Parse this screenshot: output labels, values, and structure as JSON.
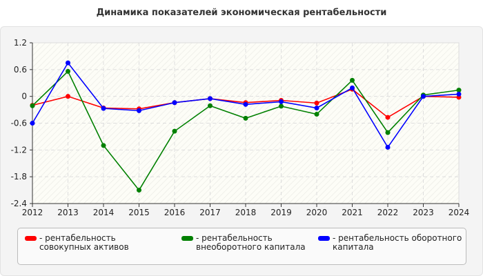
{
  "chart_data": {
    "type": "line",
    "title": "Динамика показателей экономическая рентабельности",
    "xlabel": "",
    "ylabel": "",
    "x": [
      "2012",
      "2013",
      "2014",
      "2015",
      "2016",
      "2017",
      "2018",
      "2019",
      "2020",
      "2021",
      "2022",
      "2023",
      "2024"
    ],
    "ylim": [
      -2.4,
      1.2
    ],
    "yticks": [
      "1.2",
      "0.6",
      "0",
      "-0.6",
      "-1.2",
      "-1.8",
      "-2.4"
    ],
    "grid": true,
    "legend_position": "bottom",
    "series": [
      {
        "name": "- рентабельность совокупных активов",
        "color": "#ff0000",
        "values": [
          -0.2,
          0.0,
          -0.26,
          -0.28,
          -0.14,
          -0.05,
          -0.14,
          -0.09,
          -0.15,
          0.16,
          -0.47,
          0.0,
          -0.02
        ]
      },
      {
        "name": "- рентабельность внеоборотного капитала",
        "color": "#008000",
        "values": [
          -0.21,
          0.56,
          -1.1,
          -2.1,
          -0.78,
          -0.21,
          -0.49,
          -0.22,
          -0.4,
          0.36,
          -0.81,
          0.03,
          0.14
        ]
      },
      {
        "name": "- рентабельность оборотного капитала",
        "color": "#0000ff",
        "values": [
          -0.6,
          0.75,
          -0.27,
          -0.32,
          -0.14,
          -0.05,
          -0.18,
          -0.12,
          -0.26,
          0.19,
          -1.14,
          0.0,
          0.05
        ]
      }
    ]
  }
}
